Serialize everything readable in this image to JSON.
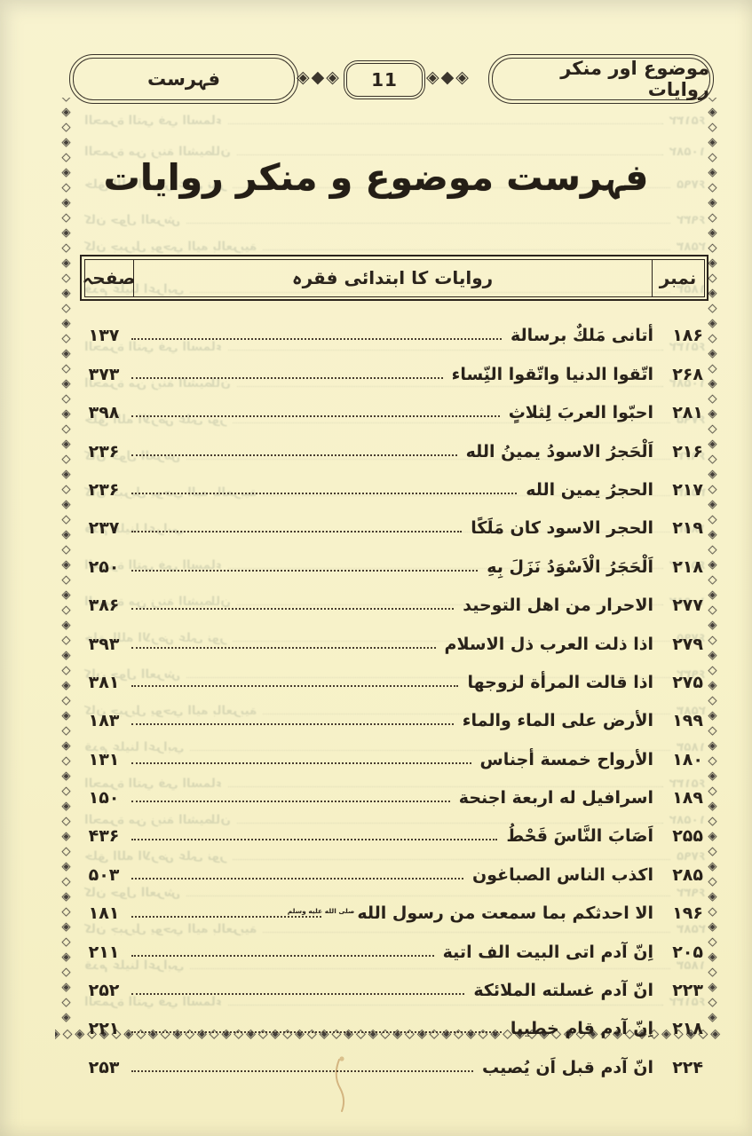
{
  "page_header": {
    "right_label": "موضوع اور منکر روایات",
    "left_label": "فہرست",
    "page_number": "11"
  },
  "title": "فہرست موضوع و منکر روایات",
  "table": {
    "columns": {
      "number": "نمبر",
      "phrase": "روایات کا ابتدائی فقرہ",
      "page": "صفحہ"
    },
    "rows": [
      {
        "num": "۱۸۶",
        "text": "أتانى مَلكٌ برسالة",
        "page": "۱۳۷"
      },
      {
        "num": "۲۶۸",
        "text": "اتّقوا الدنيا واتّقوا النِّساء",
        "page": "۳۷۳"
      },
      {
        "num": "۲۸۱",
        "text": "احبّوا العربَ لِثلاثٍ",
        "page": "۳۹۸"
      },
      {
        "num": "۲۱۶",
        "text": "اَلْحَجرُ الاسودُ يمينُ الله",
        "page": "۲۳۶"
      },
      {
        "num": "۲۱۷",
        "text": "الحجرُ يمين الله",
        "page": "۲۳۶"
      },
      {
        "num": "۲۱۹",
        "text": "الحجر الاسود كان مَلَكًا",
        "page": "۲۳۷"
      },
      {
        "num": "۲۱۸",
        "text": "اَلْحَجَرُ الْاَسْوَدُ نَزَلَ بِهِ",
        "page": "۲۵۰"
      },
      {
        "num": "۲۷۷",
        "text": "الاحرار من اهل التوحيد",
        "page": "۳۸۶"
      },
      {
        "num": "۲۷۹",
        "text": "اذا ذلت العرب ذل الاسلام",
        "page": "۳۹۳"
      },
      {
        "num": "۲۷۵",
        "text": "اذا قالت المرأة لزوجها",
        "page": "۳۸۱"
      },
      {
        "num": "۱۹۹",
        "text": "الأرض على الماء والماء",
        "page": "۱۸۳"
      },
      {
        "num": "۱۸۰",
        "text": "الأرواح خمسة أجناس",
        "page": "۱۳۱"
      },
      {
        "num": "۱۸۹",
        "text": "اسرافيل له اربعة اجنحة",
        "page": "۱۵۰"
      },
      {
        "num": "۲۵۵",
        "text": "اَصَابَ النَّاسَ قَحْطُ",
        "page": "۴۳۶"
      },
      {
        "num": "۲۸۵",
        "text": "اكذب الناس الصباغون",
        "page": "۵۰۳"
      },
      {
        "num": "۱۹۶",
        "text": "الا احدثكم بما سمعت من رسول الله",
        "page": "۱۸۱",
        "honorific": true
      },
      {
        "num": "۲۰۵",
        "text": "اِنّ آدم اتى البيت الف اتية",
        "page": "۲۱۱"
      },
      {
        "num": "۲۲۳",
        "text": "انّ آدم غسلته الملائكة",
        "page": "۲۵۲"
      },
      {
        "num": "۲۱۸",
        "text": "اِنّ آدم قام خطيبا",
        "page": "۲۲۱"
      },
      {
        "num": "۲۲۴",
        "text": "انّ آدم قبل اَن يُصيب",
        "page": "۲۵۳"
      }
    ]
  },
  "decor": {
    "honorific": "صلى الله عليه وسلم",
    "border_unit": "◈◇",
    "cluster": "◈◆◈",
    "bleed_samples": [
      {
        "text": "الحمرة التي في السماء",
        "num": "۶۵۱۳۲"
      },
      {
        "text": "الحمرة من زينة الشيطان",
        "num": "۱۰۵۸۲"
      },
      {
        "text": "خلق الله الارض على نور",
        "num": "۶۷۹۵"
      },
      {
        "text": "كان حول العرش",
        "num": "۶۹۳۲"
      },
      {
        "text": "كان جبريل يوحي اليه بالعربية",
        "num": "۲۵۸۳"
      },
      {
        "text": "قدم علينا اعرابي",
        "num": "۱۸۵۳"
      }
    ]
  }
}
